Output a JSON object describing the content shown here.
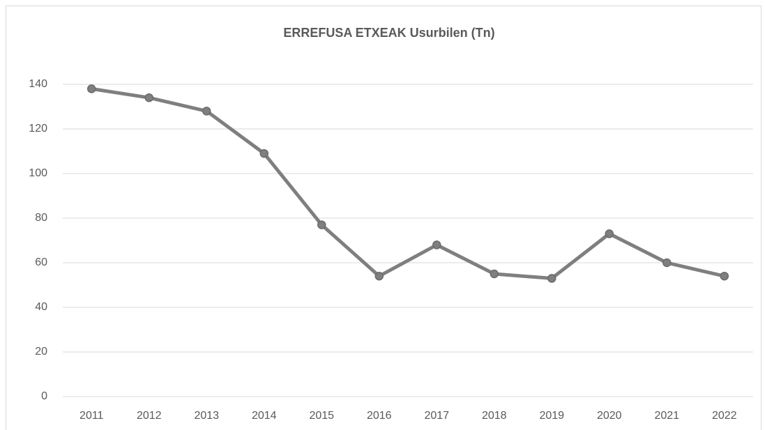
{
  "chart_data": {
    "type": "line",
    "title": "ERREFUSA ETXEAK Usurbilen (Tn)",
    "categories": [
      "2011",
      "2012",
      "2013",
      "2014",
      "2015",
      "2016",
      "2017",
      "2018",
      "2019",
      "2020",
      "2021",
      "2022"
    ],
    "values": [
      138,
      134,
      128,
      109,
      77,
      54,
      68,
      55,
      53,
      73,
      60,
      54
    ],
    "color": "#7f7f7f",
    "ylim": [
      0,
      140
    ],
    "yticks": [
      0,
      20,
      40,
      60,
      80,
      100,
      120,
      140
    ],
    "grid": true
  }
}
